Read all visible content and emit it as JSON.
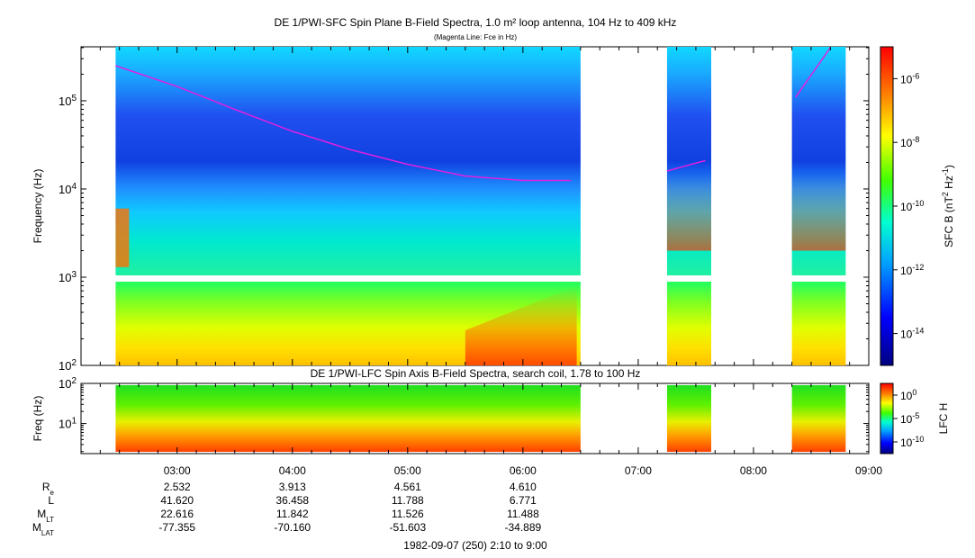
{
  "chart_data": [
    {
      "type": "heatmap",
      "title": "DE 1/PWI-SFC  Spin Plane B-Field Spectra, 1.0 m² loop antenna, 104 Hz to 409 kHz",
      "subtitle": "(Magenta Line: Fce in Hz)",
      "ylabel": "Frequency (Hz)",
      "yscale": "log",
      "ylim": [
        100,
        409000
      ],
      "xlim": [
        "02:10",
        "09:00"
      ],
      "yticks": [
        "10^2",
        "10^3",
        "10^4",
        "10^5"
      ],
      "colorbar": {
        "label": "SFC B (nT^2 Hz^-1)",
        "scale": "log",
        "ticks": [
          "10^-6",
          "10^-8",
          "10^-10",
          "10^-12",
          "10^-14"
        ]
      },
      "data_intervals": [
        [
          "02:28",
          "06:30"
        ],
        [
          "07:15",
          "07:38"
        ],
        [
          "08:20",
          "08:48"
        ]
      ],
      "series": [
        {
          "name": "Fce",
          "color": "#e020e0",
          "x": [
            "02:28",
            "03:00",
            "03:30",
            "04:00",
            "04:30",
            "05:00",
            "05:30",
            "06:00",
            "06:25",
            "07:15",
            "07:35",
            "08:22",
            "08:40"
          ],
          "y": [
            250000,
            145000,
            80000,
            45000,
            28000,
            19000,
            14000,
            12500,
            12500,
            16000,
            21000,
            110000,
            400000
          ]
        }
      ]
    },
    {
      "type": "heatmap",
      "title": "DE 1/PWI-LFC  Spin Axis B-Field Spectra, search coil, 1.78 to 100 Hz",
      "ylabel": "Freq (Hz)",
      "yscale": "log",
      "ylim": [
        1.78,
        100
      ],
      "yticks": [
        "10^1",
        "10^2"
      ],
      "colorbar": {
        "label": "LFC H",
        "scale": "log",
        "ticks": [
          "10^0",
          "10^-5",
          "10^-10"
        ]
      },
      "data_intervals": [
        [
          "02:28",
          "06:30"
        ],
        [
          "07:15",
          "07:38"
        ],
        [
          "08:20",
          "08:48"
        ]
      ]
    }
  ],
  "time_axis": {
    "ticks": [
      "03:00",
      "04:00",
      "05:00",
      "06:00",
      "07:00",
      "08:00",
      "09:00"
    ],
    "rows": [
      {
        "label": "R",
        "sub": "e",
        "values": [
          "2.532",
          "3.913",
          "4.561",
          "4.610"
        ]
      },
      {
        "label": "L",
        "sub": "",
        "values": [
          "41.620",
          "36.458",
          "11.788",
          "6.771"
        ]
      },
      {
        "label": "M",
        "sub": "LT",
        "values": [
          "22.616",
          "11.842",
          "11.526",
          "11.488"
        ]
      },
      {
        "label": "M",
        "sub": "LAT",
        "values": [
          "-77.355",
          "-70.160",
          "-51.603",
          "-34.889"
        ]
      }
    ],
    "footer": "1982-09-07 (250) 2:10 to 9:00"
  }
}
